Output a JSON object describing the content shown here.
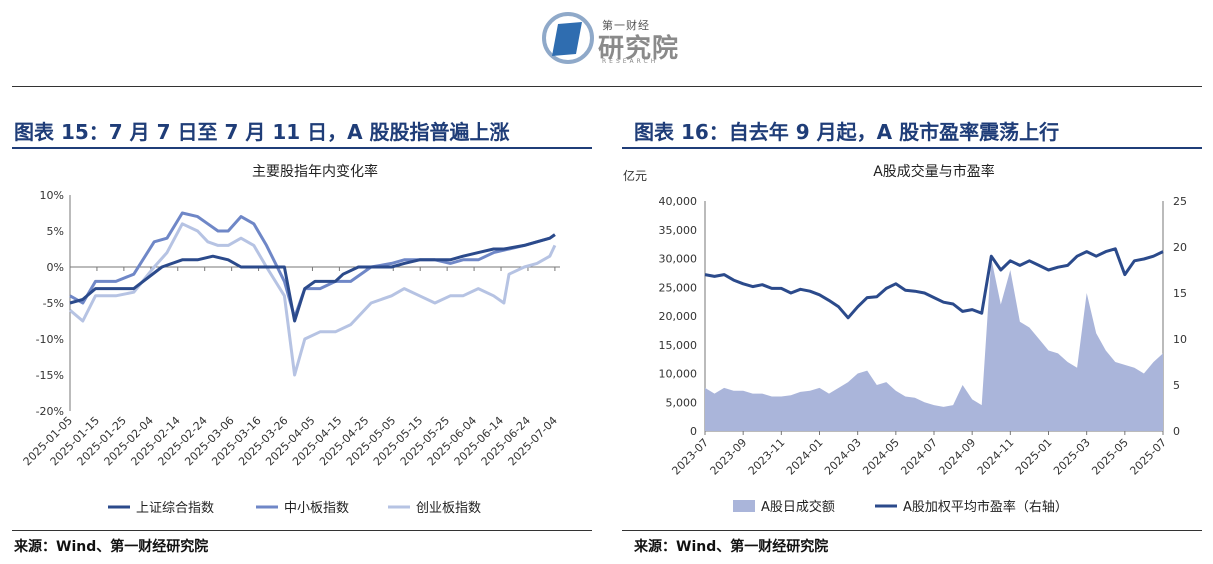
{
  "header": {
    "logo_small": "第一财经",
    "logo_main": "研究院",
    "logo_sub": "RESEARCH"
  },
  "left": {
    "figure_title": "图表 15：7 月 7 日至 7 月 11 日，A 股股指普遍上涨",
    "source": "来源：Wind、第一财经研究院"
  },
  "right": {
    "figure_title": "图表 16：自去年 9 月起，A 股市盈率震荡上行",
    "source": "来源：Wind、第一财经研究院"
  },
  "chart_data": [
    {
      "type": "line",
      "title": "主要股指年内变化率",
      "ylim": [
        -20,
        10
      ],
      "yticks": [
        "10%",
        "5%",
        "0%",
        "-5%",
        "-10%",
        "-15%",
        "-20%"
      ],
      "x_tick_labels": [
        "2025-01-05",
        "2025-01-15",
        "2025-01-25",
        "2025-02-04",
        "2025-02-14",
        "2025-02-24",
        "2025-03-06",
        "2025-03-16",
        "2025-03-26",
        "2025-04-05",
        "2025-04-15",
        "2025-04-25",
        "2025-05-05",
        "2025-05-15",
        "2025-05-25",
        "2025-06-04",
        "2025-06-14",
        "2025-06-24",
        "2025-07-04"
      ],
      "x_start": "2025-01-02",
      "legend_position": "bottom",
      "colors": {
        "上证综合指数": "#2b4a8b",
        "中小板指数": "#6f87c7",
        "创业板指数": "#b6c3e3"
      },
      "series": [
        {
          "name": "上证综合指数",
          "x": [
            0,
            5,
            10,
            18,
            25,
            36,
            44,
            50,
            56,
            62,
            67,
            73,
            79,
            84,
            88,
            92,
            96,
            101,
            104,
            107,
            113,
            120,
            126,
            131,
            137,
            143,
            149,
            154,
            160,
            166,
            170,
            178,
            183,
            188,
            190
          ],
          "values": [
            -5,
            -4.5,
            -3,
            -3,
            -3,
            0,
            1,
            1,
            1.5,
            1,
            0,
            0,
            0,
            0,
            -7.5,
            -3,
            -2,
            -2,
            -2,
            -1,
            0,
            0,
            0,
            0.5,
            1,
            1,
            1,
            1.5,
            2,
            2.5,
            2.5,
            3,
            3.5,
            4,
            4.5
          ]
        },
        {
          "name": "中小板指数",
          "x": [
            0,
            5,
            10,
            18,
            25,
            33,
            38,
            44,
            50,
            54,
            58,
            62,
            67,
            72,
            77,
            84,
            88,
            92,
            98,
            104,
            110,
            118,
            126,
            131,
            137,
            143,
            149,
            154,
            160,
            166,
            172,
            178,
            183,
            188,
            190
          ],
          "values": [
            -4,
            -5,
            -2,
            -2,
            -1,
            3.5,
            4,
            7.5,
            7,
            6,
            5,
            5,
            7,
            6,
            3,
            -2,
            -7,
            -3,
            -3,
            -2,
            -2,
            0,
            0.5,
            1,
            1,
            1,
            0.5,
            1,
            1,
            2,
            2.5,
            3,
            3.5,
            4,
            4.5
          ]
        },
        {
          "name": "创业板指数",
          "x": [
            0,
            5,
            10,
            18,
            25,
            33,
            38,
            44,
            50,
            54,
            58,
            62,
            67,
            72,
            77,
            84,
            88,
            92,
            98,
            104,
            110,
            118,
            126,
            131,
            137,
            143,
            149,
            154,
            160,
            166,
            170,
            172,
            178,
            183,
            188,
            190
          ],
          "values": [
            -6,
            -7.5,
            -4,
            -4,
            -3.5,
            0,
            2,
            6,
            5,
            3.5,
            3,
            3,
            4,
            3,
            0,
            -4,
            -15,
            -10,
            -9,
            -9,
            -8,
            -5,
            -4,
            -3,
            -4,
            -5,
            -4,
            -4,
            -3,
            -4,
            -5,
            -1,
            0,
            0.5,
            1.5,
            3
          ]
        }
      ]
    },
    {
      "type": "bar+line",
      "title": "A股成交量与市盈率",
      "left_unit_label": "亿元",
      "ylim_left": [
        0,
        40000
      ],
      "ylim_right": [
        0,
        25
      ],
      "yticks_left": [
        "40,000",
        "35,000",
        "30,000",
        "25,000",
        "20,000",
        "15,000",
        "10,000",
        "5,000",
        "0"
      ],
      "yticks_right": [
        "25",
        "20",
        "15",
        "10",
        "5",
        "0"
      ],
      "x_tick_labels": [
        "2023-07",
        "2023-09",
        "2023-11",
        "2024-01",
        "2024-03",
        "2024-05",
        "2024-07",
        "2024-09",
        "2024-11",
        "2025-01",
        "2025-03",
        "2025-05",
        "2025-07"
      ],
      "x_start": "2023-07",
      "legend_position": "bottom",
      "colors": {
        "bars": "#aab5da",
        "line": "#2b4a8b"
      },
      "series": [
        {
          "name": "A股日成交额",
          "axis": "left",
          "x": [
            0,
            0.5,
            1,
            1.5,
            2,
            2.5,
            3,
            3.5,
            4,
            4.5,
            5,
            5.5,
            6,
            6.5,
            7,
            7.5,
            8,
            8.5,
            9,
            9.5,
            10,
            10.5,
            11,
            11.5,
            12,
            12.5,
            13,
            13.5,
            14,
            14.5,
            15,
            15.5,
            16,
            16.5,
            17,
            17.5,
            18,
            18.5,
            19,
            19.5,
            20,
            20.5,
            21,
            21.5,
            22,
            22.5,
            23,
            23.5,
            24
          ],
          "values": [
            7500,
            6500,
            7500,
            7000,
            7000,
            6500,
            6500,
            6000,
            6000,
            6200,
            6800,
            7000,
            7500,
            6500,
            7500,
            8500,
            10000,
            10500,
            8000,
            8500,
            7000,
            6000,
            5800,
            5000,
            4500,
            4200,
            4500,
            8000,
            5500,
            4500,
            30000,
            22000,
            28000,
            19000,
            18000,
            16000,
            14000,
            13500,
            12000,
            11000,
            24000,
            17000,
            14000,
            12000,
            11500,
            11000,
            10000,
            12000,
            13500
          ]
        },
        {
          "name": "A股加权平均市盈率（右轴）",
          "axis": "right",
          "x": [
            0,
            0.5,
            1,
            1.5,
            2,
            2.5,
            3,
            3.5,
            4,
            4.5,
            5,
            5.5,
            6,
            6.5,
            7,
            7.5,
            8,
            8.5,
            9,
            9.5,
            10,
            10.5,
            11,
            11.5,
            12,
            12.5,
            13,
            13.5,
            14,
            14.5,
            15,
            15.5,
            16,
            16.5,
            17,
            17.5,
            18,
            18.5,
            19,
            19.5,
            20,
            20.5,
            21,
            21.5,
            22,
            22.5,
            23,
            23.5,
            24
          ],
          "values": [
            17,
            16.8,
            17,
            16.4,
            16,
            15.7,
            15.9,
            15.5,
            15.5,
            15,
            15.4,
            15.2,
            14.8,
            14.2,
            13.5,
            12.3,
            13.5,
            14.5,
            14.6,
            15.5,
            16,
            15.3,
            15.2,
            15,
            14.5,
            14,
            13.8,
            13,
            13.2,
            12.8,
            19,
            17.5,
            18.5,
            18,
            18.5,
            18,
            17.5,
            17.8,
            18,
            19,
            19.5,
            19,
            19.5,
            19.8,
            17,
            18.5,
            18.7,
            19,
            19.5
          ]
        }
      ]
    }
  ]
}
